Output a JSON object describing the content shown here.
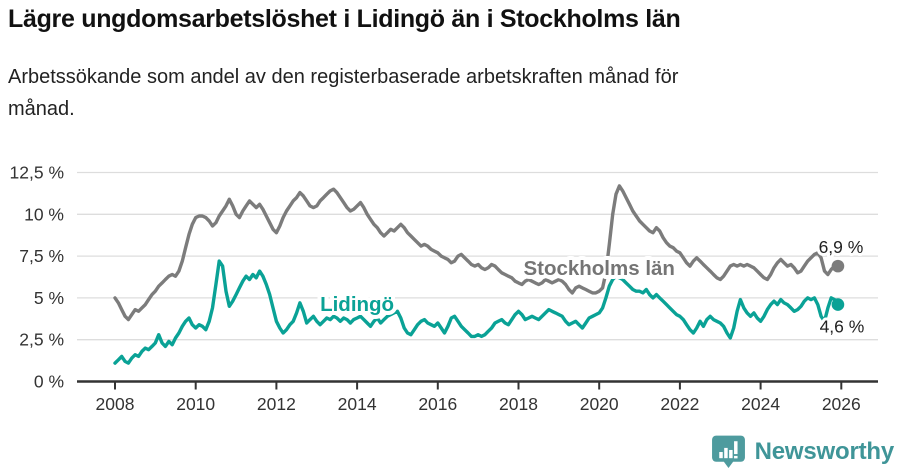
{
  "header": {
    "title": "Lägre ungdomsarbetslöshet i Lidingö än i Stockholms län",
    "subtitle": "Arbetssökande som andel av den registerbaserade arbetskraften månad för månad."
  },
  "footer": {
    "brand": "Newsworthy",
    "logo_icon": "bar-chart-pin-icon"
  },
  "colors": {
    "stockholm_line": "#7c7c7c",
    "stockholm_label": "#757575",
    "lidingo_line": "#0aa296",
    "grid": "#dddddd",
    "axis": "#333333",
    "tick_text": "#333333",
    "end_label_text": "#222222",
    "brand_teal": "#4e9b9e"
  },
  "chart_data": {
    "type": "line",
    "x_start": "2008-01",
    "x_end": "2025-12",
    "points_per_year": 12,
    "x_start_year": 2008,
    "grid": true,
    "ylim": [
      0,
      12.5
    ],
    "x_ticks": [
      "2008",
      "2010",
      "2012",
      "2014",
      "2016",
      "2018",
      "2020",
      "2022",
      "2024",
      "2026"
    ],
    "y_ticks": [
      {
        "value": 0,
        "label": "0 %"
      },
      {
        "value": 2.5,
        "label": "2,5 %"
      },
      {
        "value": 5,
        "label": "5 %"
      },
      {
        "value": 7.5,
        "label": "7,5 %"
      },
      {
        "value": 10,
        "label": "10 %"
      },
      {
        "value": 12.5,
        "label": "12,5 %"
      }
    ],
    "series": [
      {
        "name": "Stockholms län",
        "color": "#7c7c7c",
        "label_color": "#757575",
        "end_label": "6,9 %",
        "final_value": 6.9,
        "label_anchor": {
          "year": 2020.0,
          "pct": 6.8
        },
        "end_label_offset": {
          "dx": 3,
          "dy": -13
        },
        "values": [
          5.0,
          4.7,
          4.3,
          3.9,
          3.7,
          4.0,
          4.3,
          4.2,
          4.4,
          4.6,
          4.9,
          5.2,
          5.4,
          5.7,
          5.9,
          6.1,
          6.3,
          6.4,
          6.3,
          6.6,
          7.2,
          8.0,
          8.8,
          9.4,
          9.8,
          9.9,
          9.9,
          9.8,
          9.6,
          9.3,
          9.5,
          9.9,
          10.2,
          10.5,
          10.9,
          10.5,
          10.0,
          9.8,
          10.2,
          10.5,
          10.8,
          10.6,
          10.4,
          10.6,
          10.3,
          9.9,
          9.5,
          9.1,
          8.9,
          9.3,
          9.8,
          10.2,
          10.5,
          10.8,
          11.0,
          11.3,
          11.1,
          10.8,
          10.5,
          10.4,
          10.5,
          10.8,
          11.0,
          11.2,
          11.4,
          11.5,
          11.3,
          11.0,
          10.7,
          10.4,
          10.2,
          10.3,
          10.5,
          10.7,
          10.4,
          10.0,
          9.7,
          9.4,
          9.2,
          8.9,
          8.7,
          8.9,
          9.1,
          9.0,
          9.2,
          9.4,
          9.2,
          8.9,
          8.7,
          8.5,
          8.3,
          8.1,
          8.2,
          8.1,
          7.9,
          7.8,
          7.7,
          7.5,
          7.4,
          7.3,
          7.1,
          7.2,
          7.5,
          7.6,
          7.4,
          7.2,
          7.0,
          6.9,
          7.0,
          6.8,
          6.7,
          6.8,
          7.0,
          6.9,
          6.7,
          6.5,
          6.4,
          6.3,
          6.2,
          6.0,
          5.9,
          5.8,
          6.0,
          6.1,
          6.0,
          5.9,
          5.8,
          5.9,
          6.1,
          6.0,
          5.9,
          6.0,
          6.1,
          6.0,
          5.8,
          5.5,
          5.3,
          5.6,
          5.7,
          5.6,
          5.5,
          5.4,
          5.3,
          5.3,
          5.4,
          5.6,
          6.5,
          8.2,
          10.0,
          11.2,
          11.7,
          11.4,
          11.0,
          10.6,
          10.2,
          9.9,
          9.6,
          9.4,
          9.2,
          9.0,
          8.9,
          9.2,
          9.0,
          8.6,
          8.3,
          8.1,
          8.0,
          7.8,
          7.7,
          7.4,
          7.1,
          6.9,
          7.2,
          7.4,
          7.2,
          7.0,
          6.8,
          6.6,
          6.4,
          6.2,
          6.1,
          6.3,
          6.6,
          6.9,
          7.0,
          6.9,
          7.0,
          6.9,
          7.0,
          6.9,
          6.8,
          6.6,
          6.4,
          6.2,
          6.1,
          6.4,
          6.8,
          7.1,
          7.3,
          7.1,
          6.9,
          7.0,
          6.8,
          6.5,
          6.6,
          6.9,
          7.2,
          7.4,
          7.6,
          7.7,
          7.4,
          6.6,
          6.4,
          6.7,
          6.9,
          6.9
        ]
      },
      {
        "name": "Lidingö",
        "color": "#0aa296",
        "label_color": "#0aa296",
        "end_label": "4,6 %",
        "final_value": 4.6,
        "label_anchor": {
          "year": 2014.0,
          "pct": 4.65
        },
        "end_label_offset": {
          "dx": 4,
          "dy": 28
        },
        "values": [
          1.1,
          1.3,
          1.5,
          1.2,
          1.1,
          1.4,
          1.6,
          1.5,
          1.8,
          2.0,
          1.9,
          2.1,
          2.3,
          2.8,
          2.3,
          2.1,
          2.4,
          2.2,
          2.6,
          2.9,
          3.3,
          3.6,
          3.8,
          3.4,
          3.2,
          3.4,
          3.3,
          3.1,
          3.6,
          4.4,
          5.8,
          7.2,
          6.9,
          5.4,
          4.5,
          4.8,
          5.2,
          5.6,
          6.0,
          6.3,
          6.1,
          6.4,
          6.2,
          6.6,
          6.3,
          5.8,
          5.2,
          4.4,
          3.6,
          3.2,
          2.9,
          3.1,
          3.4,
          3.6,
          4.1,
          4.7,
          4.2,
          3.5,
          3.7,
          3.9,
          3.6,
          3.4,
          3.6,
          3.8,
          3.7,
          3.9,
          3.8,
          3.6,
          3.8,
          3.7,
          3.5,
          3.7,
          3.8,
          3.9,
          3.7,
          3.5,
          3.3,
          3.6,
          3.8,
          3.5,
          3.7,
          3.9,
          4.0,
          4.1,
          4.2,
          3.8,
          3.2,
          2.9,
          2.8,
          3.1,
          3.4,
          3.6,
          3.7,
          3.5,
          3.4,
          3.3,
          3.5,
          3.2,
          2.9,
          3.3,
          3.8,
          3.9,
          3.6,
          3.3,
          3.1,
          2.9,
          2.7,
          2.7,
          2.8,
          2.7,
          2.8,
          3.0,
          3.2,
          3.5,
          3.6,
          3.7,
          3.5,
          3.4,
          3.7,
          4.0,
          4.2,
          4.0,
          3.7,
          3.8,
          3.9,
          3.8,
          3.7,
          3.9,
          4.1,
          4.3,
          4.2,
          4.1,
          4.0,
          3.9,
          3.6,
          3.4,
          3.5,
          3.6,
          3.4,
          3.2,
          3.5,
          3.8,
          3.9,
          4.0,
          4.1,
          4.4,
          5.0,
          5.7,
          6.1,
          6.3,
          6.2,
          6.1,
          5.9,
          5.7,
          5.5,
          5.4,
          5.4,
          5.3,
          5.5,
          5.2,
          5.0,
          5.2,
          5.0,
          4.8,
          4.6,
          4.4,
          4.2,
          4.0,
          3.9,
          3.7,
          3.4,
          3.1,
          2.9,
          3.2,
          3.6,
          3.3,
          3.7,
          3.9,
          3.7,
          3.6,
          3.5,
          3.3,
          2.9,
          2.6,
          3.2,
          4.2,
          4.9,
          4.4,
          4.1,
          3.9,
          4.1,
          3.8,
          3.6,
          3.9,
          4.3,
          4.6,
          4.8,
          4.6,
          4.9,
          4.7,
          4.6,
          4.4,
          4.2,
          4.3,
          4.5,
          4.8,
          5.0,
          4.9,
          5.0,
          4.6,
          3.9,
          3.6,
          4.4,
          5.0,
          4.9,
          4.6
        ]
      }
    ]
  }
}
